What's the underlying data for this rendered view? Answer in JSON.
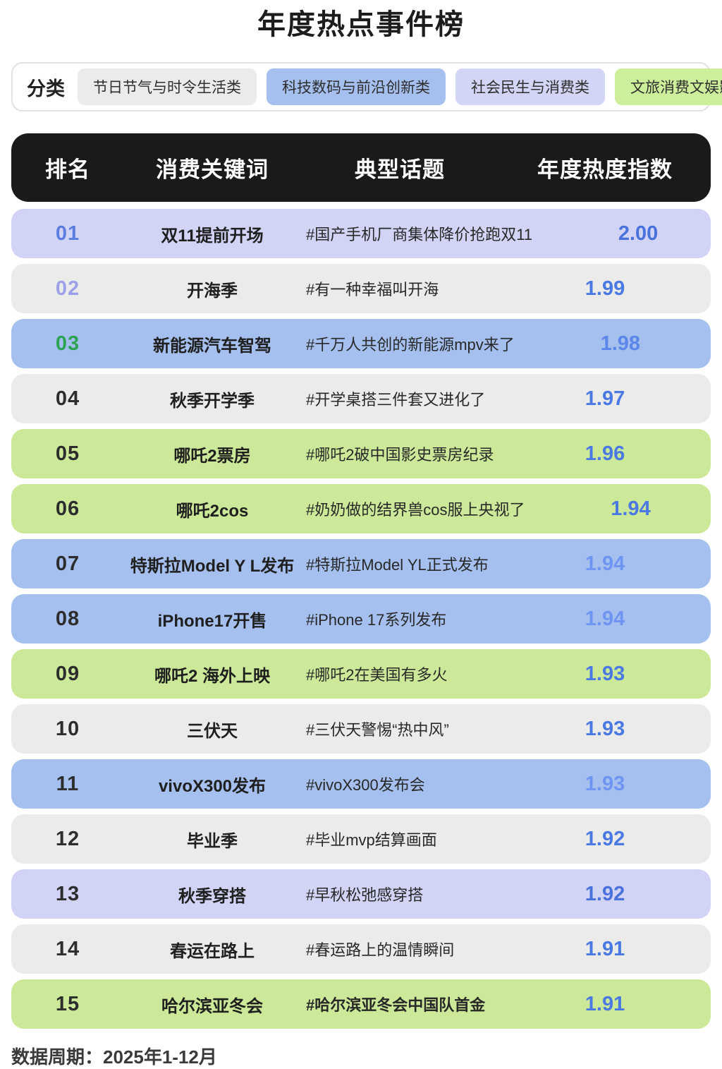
{
  "page": {
    "title": "年度热点事件榜",
    "footer": "数据周期：2025年1-12月"
  },
  "filters": {
    "label": "分类",
    "categories": [
      {
        "label": "节日节气与时令生活类",
        "color": "#ebebe9"
      },
      {
        "label": "科技数码与前沿创新类",
        "color": "#a5c0ee"
      },
      {
        "label": "社会民生与消费类",
        "color": "#d2d5f6"
      },
      {
        "label": "文旅消费文娱影视类",
        "color": "#cdee9b"
      }
    ]
  },
  "table": {
    "headers": {
      "rank": "排名",
      "keyword": "消费关键词",
      "topic": "典型话题",
      "index": "年度热度指数"
    },
    "rows": [
      {
        "rank": "01",
        "keyword": "双11提前开场",
        "topic": "#国产手机厂商集体降价抢跑双11",
        "index": "2.00",
        "row_color": "#d2d4f6",
        "rank_color": "#5b7ce0",
        "index_color": "#4a72dd",
        "topic_bold": false
      },
      {
        "rank": "02",
        "keyword": "开海季",
        "topic": "#有一种幸福叫开海",
        "index": "1.99",
        "row_color": "#ebebe9",
        "rank_color": "#9d9fe8",
        "index_color": "#4a79e4",
        "topic_bold": false
      },
      {
        "rank": "03",
        "keyword": "新能源汽车智驾",
        "topic": "#千万人共创的新能源mpv来了",
        "index": "1.98",
        "row_color": "#a5c0ee",
        "rank_color": "#2ca352",
        "index_color": "#5b87ea",
        "topic_bold": false
      },
      {
        "rank": "04",
        "keyword": "秋季开学季",
        "topic": "#开学桌搭三件套又进化了",
        "index": "1.97",
        "row_color": "#ebebe9",
        "rank_color": "#2d2d2d",
        "index_color": "#4a79e4",
        "topic_bold": false
      },
      {
        "rank": "05",
        "keyword": "哪吒2票房",
        "topic": "#哪吒2破中国影史票房纪录",
        "index": "1.96",
        "row_color": "#cbe998",
        "rank_color": "#2d2d2d",
        "index_color": "#4a79e4",
        "topic_bold": false
      },
      {
        "rank": "06",
        "keyword": "哪吒2cos",
        "topic": "#奶奶做的结界兽cos服上央视了",
        "index": "1.94",
        "row_color": "#cbe998",
        "rank_color": "#2d2d2d",
        "index_color": "#4a79e4",
        "topic_bold": false
      },
      {
        "rank": "07",
        "keyword": "特斯拉Model Y L发布",
        "topic": "#特斯拉Model YL正式发布",
        "index": "1.94",
        "row_color": "#a5c0ee",
        "rank_color": "#2d2d2d",
        "index_color": "#6e95f2",
        "topic_bold": false
      },
      {
        "rank": "08",
        "keyword": "iPhone17开售",
        "topic": "#iPhone 17系列发布",
        "index": "1.94",
        "row_color": "#a5c0ee",
        "rank_color": "#2d2d2d",
        "index_color": "#6e95f2",
        "topic_bold": false
      },
      {
        "rank": "09",
        "keyword": "哪吒2 海外上映",
        "topic": "#哪吒2在美国有多火",
        "index": "1.93",
        "row_color": "#cbe998",
        "rank_color": "#2d2d2d",
        "index_color": "#4a79e4",
        "topic_bold": false
      },
      {
        "rank": "10",
        "keyword": "三伏天",
        "topic": "#三伏天警惕“热中风”",
        "index": "1.93",
        "row_color": "#ebebe9",
        "rank_color": "#2d2d2d",
        "index_color": "#4a79e4",
        "topic_bold": false
      },
      {
        "rank": "11",
        "keyword": "vivoX300发布",
        "topic": "#vivoX300发布会",
        "index": "1.93",
        "row_color": "#a5c0ee",
        "rank_color": "#2d2d2d",
        "index_color": "#6e95f2",
        "topic_bold": false
      },
      {
        "rank": "12",
        "keyword": "毕业季",
        "topic": "#毕业mvp结算画面",
        "index": "1.92",
        "row_color": "#ebebe9",
        "rank_color": "#2d2d2d",
        "index_color": "#4a79e4",
        "topic_bold": false
      },
      {
        "rank": "13",
        "keyword": "秋季穿搭",
        "topic": "#早秋松弛感穿搭",
        "index": "1.92",
        "row_color": "#d2d4f6",
        "rank_color": "#2d2d2d",
        "index_color": "#4a72dd",
        "topic_bold": false
      },
      {
        "rank": "14",
        "keyword": "春运在路上",
        "topic": "#春运路上的温情瞬间",
        "index": "1.91",
        "row_color": "#ebebe9",
        "rank_color": "#2d2d2d",
        "index_color": "#4a79e4",
        "topic_bold": false
      },
      {
        "rank": "15",
        "keyword": "哈尔滨亚冬会",
        "topic": "#哈尔滨亚冬会中国队首金",
        "index": "1.91",
        "row_color": "#cbe998",
        "rank_color": "#2d2d2d",
        "index_color": "#4a79e4",
        "topic_bold": true
      }
    ]
  },
  "colors": {
    "header_bg": "#1a1a1c",
    "header_text": "#ffffff",
    "accent_index_blue": "#4a79e4",
    "row_lavender": "#d2d4f6",
    "row_gray": "#ebebe9",
    "row_blue": "#a5c0ee",
    "row_green": "#cbe998"
  },
  "chart_data": {
    "type": "table",
    "title": "年度热点事件榜",
    "columns": [
      "排名",
      "消费关键词",
      "典型话题",
      "年度热度指数"
    ],
    "rows": [
      [
        "01",
        "双11提前开场",
        "#国产手机厂商集体降价抢跑双11",
        2.0
      ],
      [
        "02",
        "开海季",
        "#有一种幸福叫开海",
        1.99
      ],
      [
        "03",
        "新能源汽车智驾",
        "#千万人共创的新能源mpv来了",
        1.98
      ],
      [
        "04",
        "秋季开学季",
        "#开学桌搭三件套又进化了",
        1.97
      ],
      [
        "05",
        "哪吒2票房",
        "#哪吒2破中国影史票房纪录",
        1.96
      ],
      [
        "06",
        "哪吒2cos",
        "#奶奶做的结界兽cos服上央视了",
        1.94
      ],
      [
        "07",
        "特斯拉Model Y L发布",
        "#特斯拉Model YL正式发布",
        1.94
      ],
      [
        "08",
        "iPhone17开售",
        "#iPhone 17系列发布",
        1.94
      ],
      [
        "09",
        "哪吒2 海外上映",
        "#哪吒2在美国有多火",
        1.93
      ],
      [
        "10",
        "三伏天",
        "#三伏天警惕“热中风”",
        1.93
      ],
      [
        "11",
        "vivoX300发布",
        "#vivoX300发布会",
        1.93
      ],
      [
        "12",
        "毕业季",
        "#毕业mvp结算画面",
        1.92
      ],
      [
        "13",
        "秋季穿搭",
        "#早秋松弛感穿搭",
        1.92
      ],
      [
        "14",
        "春运在路上",
        "#春运路上的温情瞬间",
        1.91
      ],
      [
        "15",
        "哈尔滨亚冬会",
        "#哈尔滨亚冬会中国队首金",
        1.91
      ]
    ],
    "legend": {
      "节日节气与时令生活类": "#ebebe9",
      "科技数码与前沿创新类": "#a5c0ee",
      "社会民生与消费类": "#d2d5f6",
      "文旅消费文娱影视类": "#cdee9b"
    },
    "note": "数据周期：2025年1-12月"
  }
}
